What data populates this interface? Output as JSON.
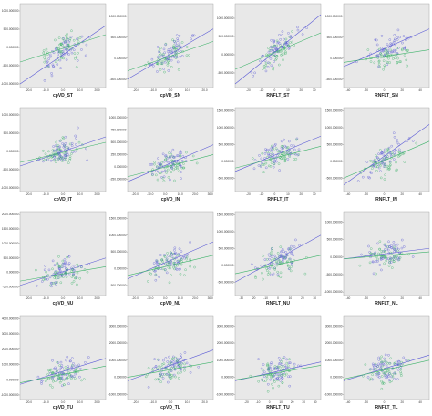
{
  "colors": {
    "panel_bg": "#e8e8e8",
    "series_a": "#5b5bd6",
    "series_b": "#3fb36b",
    "axis": "#333333"
  },
  "chart_data": [
    {
      "type": "scatter",
      "xlabel": "cpVD_ST",
      "xticks": [
        "-20.0",
        "-10.0",
        "0.0",
        "10.0",
        "20.0"
      ],
      "xlim": [
        -25,
        25
      ],
      "yticks": [
        "1000.000000",
        "500.000000",
        "0.000000",
        "-500.000000",
        "-1000.000000"
      ],
      "ylim": [
        -1100,
        1200
      ],
      "fit_a": [
        -1000,
        600
      ],
      "fit_b": [
        -400,
        350
      ]
    },
    {
      "type": "scatter",
      "xlabel": "cpVD_SN",
      "xticks": [
        "-20.0",
        "-10.0",
        "0.0",
        "10.0",
        "20.0"
      ],
      "xlim": [
        -25,
        25
      ],
      "yticks": [
        "1000.000000",
        "500.000000",
        "0.000000",
        "-500.000000"
      ],
      "ylim": [
        -700,
        1300
      ],
      "fit_a": [
        -500,
        700
      ],
      "fit_b": [
        -300,
        400
      ]
    },
    {
      "type": "scatter",
      "xlabel": "RNFLT_ST",
      "xticks": [
        "-20",
        "-10",
        "0",
        "10",
        "20",
        "30"
      ],
      "xlim": [
        -30,
        35
      ],
      "yticks": [
        "1000.000000",
        "500.000000",
        "0.000000",
        "-500.000000"
      ],
      "ylim": [
        -900,
        1400
      ],
      "fit_a": [
        -800,
        1100
      ],
      "fit_b": [
        -400,
        600
      ]
    },
    {
      "type": "scatter",
      "xlabel": "RNFLT_SN",
      "xticks": [
        "-40",
        "-20",
        "0",
        "20",
        "40"
      ],
      "xlim": [
        -45,
        50
      ],
      "yticks": [
        "1000.000000",
        "500.000000",
        "0.000000",
        "-500.000000"
      ],
      "ylim": [
        -700,
        1300
      ],
      "fit_a": [
        -200,
        700
      ],
      "fit_b": [
        -100,
        200
      ]
    },
    {
      "type": "scatter",
      "xlabel": "cpVD_IT",
      "xticks": [
        "-20.0",
        "-10.0",
        "0.0",
        "10.0",
        "20.0"
      ],
      "xlim": [
        -25,
        25
      ],
      "yticks": [
        "1000.000000",
        "500.000000",
        "0.000000",
        "-500.000000",
        "-1000.000000"
      ],
      "ylim": [
        -1100,
        1200
      ],
      "fit_a": [
        -400,
        400
      ],
      "fit_b": [
        -300,
        250
      ]
    },
    {
      "type": "scatter",
      "xlabel": "cpVD_IN",
      "xticks": [
        "-20.0",
        "-10.0",
        "0.0",
        "10.0",
        "20.0",
        "30.0"
      ],
      "xlim": [
        -25,
        32
      ],
      "yticks": [
        "1000.000000",
        "750.000000",
        "500.000000",
        "250.000000",
        "0.000000",
        "-250.000000"
      ],
      "ylim": [
        -500,
        1200
      ],
      "fit_a": [
        -300,
        450
      ],
      "fit_b": [
        -200,
        250
      ]
    },
    {
      "type": "scatter",
      "xlabel": "RNFLT_IT",
      "xticks": [
        "-20",
        "-10",
        "0",
        "10",
        "20",
        "30"
      ],
      "xlim": [
        -30,
        35
      ],
      "yticks": [
        "1500.000000",
        "1000.000000",
        "500.000000",
        "0.000000",
        "-500.000000"
      ],
      "ylim": [
        -900,
        1600
      ],
      "fit_a": [
        -300,
        750
      ],
      "fit_b": [
        -200,
        450
      ]
    },
    {
      "type": "scatter",
      "xlabel": "RNFLT_IN",
      "xticks": [
        "-40",
        "-20",
        "0",
        "20",
        "40"
      ],
      "xlim": [
        -45,
        50
      ],
      "yticks": [
        "1500.000000",
        "1000.000000",
        "500.000000",
        "0.000000",
        "-500.000000"
      ],
      "ylim": [
        -900,
        1600
      ],
      "fit_a": [
        -700,
        1100
      ],
      "fit_b": [
        -500,
        600
      ]
    },
    {
      "type": "scatter",
      "xlabel": "cpVD_NU",
      "xticks": [
        "-20.0",
        "-10.0",
        "0.0",
        "10.0",
        "20.0"
      ],
      "xlim": [
        -25,
        25
      ],
      "yticks": [
        "2000.000000",
        "1500.000000",
        "1000.000000",
        "500.000000",
        "0.000000",
        "-500.000000"
      ],
      "ylim": [
        -800,
        2100
      ],
      "fit_a": [
        -450,
        500
      ],
      "fit_b": [
        -300,
        200
      ]
    },
    {
      "type": "scatter",
      "xlabel": "cpVD_NL",
      "xticks": [
        "-20.0",
        "-10.0",
        "0.0",
        "10.0",
        "20.0",
        "30.0"
      ],
      "xlim": [
        -25,
        32
      ],
      "yticks": [
        "1500.000000",
        "1000.000000",
        "500.000000",
        "0.000000",
        "-500.000000"
      ],
      "ylim": [
        -800,
        1700
      ],
      "fit_a": [
        -300,
        800
      ],
      "fit_b": [
        -200,
        400
      ]
    },
    {
      "type": "scatter",
      "xlabel": "RNFLT_NU",
      "xticks": [
        "-30",
        "-20",
        "-10",
        "0",
        "10",
        "20",
        "30"
      ],
      "xlim": [
        -35,
        35
      ],
      "yticks": [
        "1500.000000",
        "1000.000000",
        "500.000000",
        "0.000000",
        "-500.000000"
      ],
      "ylim": [
        -900,
        1600
      ],
      "fit_a": [
        -500,
        900
      ],
      "fit_b": [
        -250,
        300
      ]
    },
    {
      "type": "scatter",
      "xlabel": "RNFLT_NL",
      "xticks": [
        "-40",
        "-20",
        "0",
        "20",
        "40"
      ],
      "xlim": [
        -45,
        50
      ],
      "yticks": [
        "1000.000000",
        "500.000000",
        "0.000000",
        "-500.000000",
        "-1000.000000"
      ],
      "ylim": [
        -1100,
        1300
      ],
      "fit_a": [
        -50,
        250
      ],
      "fit_b": [
        -50,
        150
      ]
    },
    {
      "type": "scatter",
      "xlabel": "cpVD_TU",
      "xticks": [
        "-20.0",
        "-10.0",
        "0.0",
        "10.0",
        "20.0"
      ],
      "xlim": [
        -25,
        25
      ],
      "yticks": [
        "4000.000000",
        "3000.000000",
        "2000.000000",
        "1000.000000",
        "0.000000",
        "-1000.000000"
      ],
      "ylim": [
        -1300,
        4200
      ],
      "fit_a": [
        -300,
        1400
      ],
      "fit_b": [
        -200,
        900
      ]
    },
    {
      "type": "scatter",
      "xlabel": "cpVD_TL",
      "xticks": [
        "-20.0",
        "-10.0",
        "0.0",
        "10.0",
        "20.0"
      ],
      "xlim": [
        -25,
        25
      ],
      "yticks": [
        "3000.000000",
        "2000.000000",
        "1000.000000",
        "0.000000",
        "-1000.000000"
      ],
      "ylim": [
        -1300,
        3600
      ],
      "fit_a": [
        -200,
        1600
      ],
      "fit_b": [
        0,
        900
      ]
    },
    {
      "type": "scatter",
      "xlabel": "RNFLT_TU",
      "xticks": [
        "-20",
        "-10",
        "0",
        "10",
        "20",
        "30",
        "40"
      ],
      "xlim": [
        -30,
        45
      ],
      "yticks": [
        "3000.000000",
        "2000.000000",
        "1000.000000",
        "0.000000",
        "-1000.000000"
      ],
      "ylim": [
        -1300,
        3600
      ],
      "fit_a": [
        -200,
        900
      ],
      "fit_b": [
        -150,
        700
      ]
    },
    {
      "type": "scatter",
      "xlabel": "RNFLT_TL",
      "xticks": [
        "-40",
        "-20",
        "0",
        "20",
        "40"
      ],
      "xlim": [
        -45,
        50
      ],
      "yticks": [
        "3000.000000",
        "2000.000000",
        "1000.000000",
        "0.000000",
        "-1000.000000"
      ],
      "ylim": [
        -1300,
        3600
      ],
      "fit_a": [
        -200,
        1300
      ],
      "fit_b": [
        -100,
        1000
      ]
    }
  ]
}
